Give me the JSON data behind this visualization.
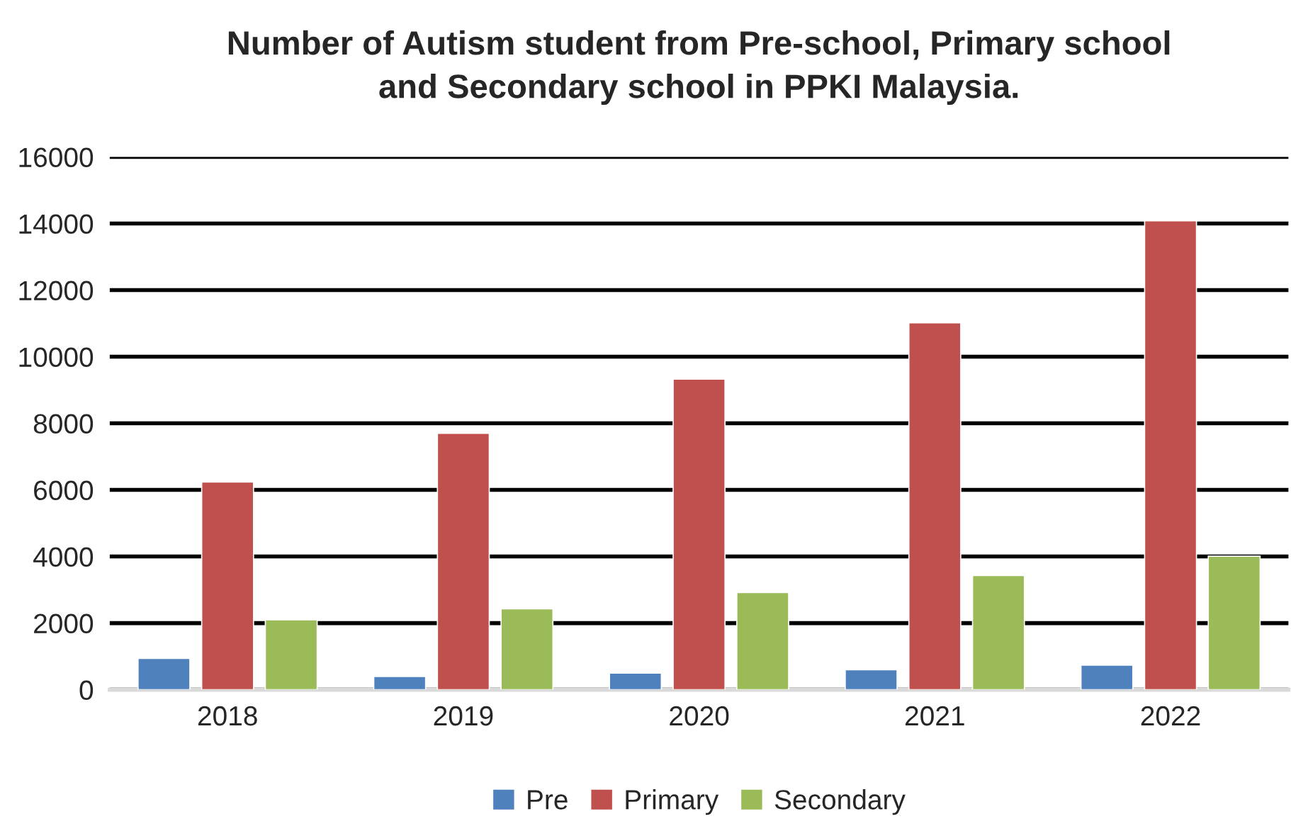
{
  "chart_data": {
    "type": "bar",
    "title": "Number of Autism student from Pre-school, Primary school\nand Secondary school in PPKI Malaysia.",
    "categories": [
      "2018",
      "2019",
      "2020",
      "2021",
      "2022"
    ],
    "series": [
      {
        "name": "Pre",
        "color": "#4f81bd",
        "values": [
          940,
          400,
          500,
          600,
          740
        ]
      },
      {
        "name": "Primary",
        "color": "#c0504d",
        "values": [
          6240,
          7700,
          9330,
          11020,
          14080
        ]
      },
      {
        "name": "Secondary",
        "color": "#9bbb59",
        "values": [
          2100,
          2430,
          2920,
          3430,
          4010
        ]
      }
    ],
    "ylim": [
      0,
      16000
    ],
    "yticks": [
      0,
      2000,
      4000,
      6000,
      8000,
      10000,
      12000,
      14000,
      16000
    ],
    "grid": "y",
    "legend": "bottom"
  }
}
